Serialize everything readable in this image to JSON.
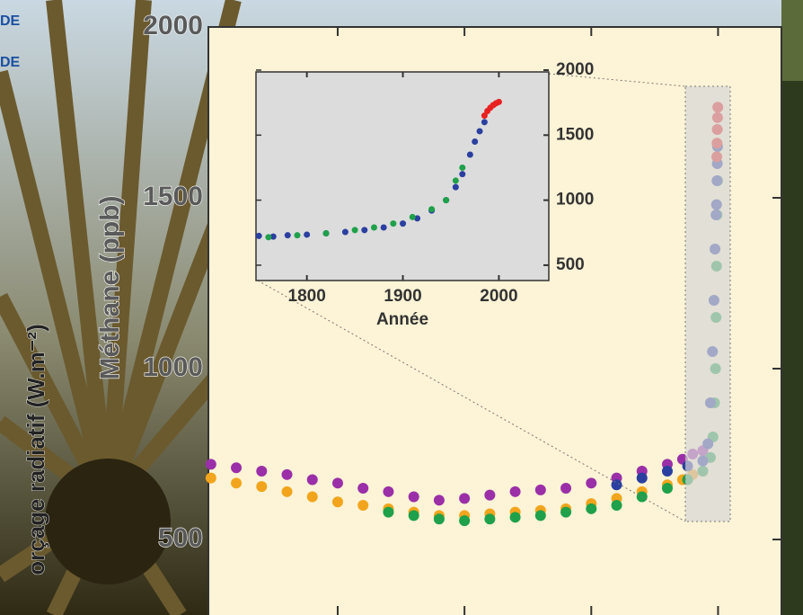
{
  "slide": {
    "labels": [
      "DE",
      "DE"
    ],
    "side_label": "orçage radiatif (W.m⁻²)"
  },
  "chart_data": [
    {
      "type": "scatter",
      "y_label": "Méthane (ppb)",
      "xlim": [
        10050,
        -1250
      ],
      "xticks": [
        7500,
        5000,
        2500,
        0
      ],
      "ylim": [
        279,
        2000
      ],
      "yticks": [
        500,
        1000,
        1500,
        2000
      ],
      "series": [
        {
          "color": "#9b2fa8",
          "x": [
            10000,
            9500,
            9000,
            8500,
            8000,
            7500,
            7000,
            6500,
            6000,
            5500,
            5000,
            4500,
            4000,
            3500,
            3000,
            2500,
            2000,
            1500,
            1000,
            700,
            500,
            300
          ],
          "values": [
            720,
            710,
            700,
            690,
            675,
            665,
            650,
            640,
            625,
            615,
            620,
            630,
            640,
            645,
            650,
            665,
            680,
            700,
            720,
            735,
            750,
            760
          ]
        },
        {
          "color": "#f2a51c",
          "x": [
            10000,
            9500,
            9000,
            8500,
            8000,
            7500,
            7000,
            6500,
            6000,
            5500,
            5000,
            4500,
            4000,
            3500,
            3000,
            2500,
            2000,
            1500,
            1000,
            700,
            500,
            300
          ],
          "values": [
            680,
            665,
            655,
            640,
            625,
            610,
            600,
            590,
            580,
            570,
            570,
            575,
            580,
            585,
            590,
            605,
            620,
            640,
            660,
            675,
            690,
            700
          ]
        },
        {
          "color": "#1fa04a",
          "x": [
            6500,
            6000,
            5500,
            5000,
            4500,
            4000,
            3500,
            3000,
            2500,
            2000,
            1500,
            1000,
            600,
            300,
            150,
            100,
            70,
            50,
            40,
            30,
            20,
            10
          ],
          "values": [
            580,
            570,
            560,
            555,
            560,
            565,
            570,
            580,
            590,
            600,
            625,
            650,
            675,
            700,
            740,
            800,
            900,
            1000,
            1150,
            1300,
            1450,
            1550
          ]
        },
        {
          "color": "#2a3fa0",
          "x": [
            2000,
            1500,
            1000,
            600,
            300,
            200,
            150,
            110,
            80,
            60,
            40,
            30,
            20,
            15,
            10
          ],
          "values": [
            660,
            680,
            700,
            715,
            730,
            780,
            900,
            1050,
            1200,
            1350,
            1450,
            1480,
            1550,
            1600,
            1650
          ]
        },
        {
          "color": "#e82020",
          "x": [
            25,
            20,
            15,
            10,
            5
          ],
          "values": [
            1620,
            1660,
            1700,
            1735,
            1765
          ]
        }
      ]
    },
    {
      "type": "scatter",
      "x_label": "Année",
      "xlim": [
        1747,
        2052
      ],
      "xticks": [
        1800,
        1900,
        2000
      ],
      "ylim": [
        382,
        1986
      ],
      "yticks": [
        500,
        1000,
        1500,
        2000
      ],
      "series": [
        {
          "color": "#2a3fa0",
          "x": [
            1750,
            1765,
            1780,
            1800,
            1820,
            1840,
            1860,
            1880,
            1900,
            1915,
            1930,
            1945,
            1955,
            1962,
            1970,
            1975,
            1980,
            1985
          ],
          "values": [
            725,
            720,
            730,
            735,
            745,
            755,
            770,
            790,
            820,
            860,
            920,
            1000,
            1100,
            1200,
            1350,
            1450,
            1530,
            1600
          ]
        },
        {
          "color": "#1fa04a",
          "x": [
            1760,
            1790,
            1820,
            1850,
            1870,
            1890,
            1910,
            1930,
            1945,
            1955,
            1962
          ],
          "values": [
            715,
            730,
            745,
            770,
            790,
            820,
            870,
            930,
            1000,
            1150,
            1250
          ]
        },
        {
          "color": "#e82020",
          "x": [
            1985,
            1988,
            1991,
            1994,
            1997,
            2000
          ],
          "values": [
            1650,
            1685,
            1710,
            1730,
            1745,
            1755
          ]
        }
      ]
    }
  ]
}
